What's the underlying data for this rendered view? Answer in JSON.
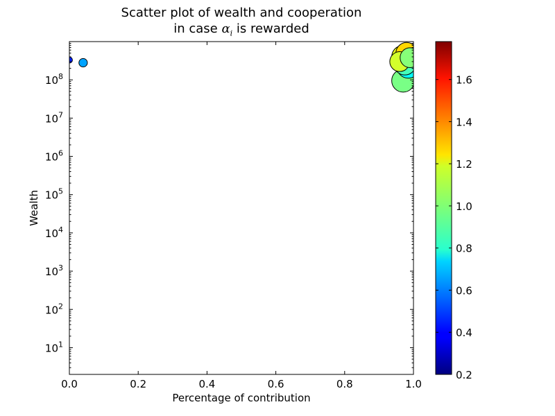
{
  "chart_data": {
    "type": "scatter",
    "title_line1": "Scatter plot of wealth and cooperation",
    "title_line2_prefix": "in case ",
    "title_line2_math": "α",
    "title_line2_math_sub": "i",
    "title_line2_suffix": " is rewarded",
    "xlabel": "Percentage of contribution",
    "ylabel": "Wealth",
    "xlim": [
      0.0,
      1.0
    ],
    "ylim": [
      2,
      1000000000
    ],
    "yscale": "log",
    "xticks": [
      "0.0",
      "0.2",
      "0.4",
      "0.6",
      "0.8",
      "1.0"
    ],
    "yticks": [
      {
        "base": "10",
        "exp": "1"
      },
      {
        "base": "10",
        "exp": "2"
      },
      {
        "base": "10",
        "exp": "3"
      },
      {
        "base": "10",
        "exp": "4"
      },
      {
        "base": "10",
        "exp": "5"
      },
      {
        "base": "10",
        "exp": "6"
      },
      {
        "base": "10",
        "exp": "7"
      },
      {
        "base": "10",
        "exp": "8"
      }
    ],
    "colorbar": {
      "range": [
        0.2,
        1.78
      ],
      "ticks": [
        "0.2",
        "0.4",
        "0.6",
        "0.8",
        "1.0",
        "1.2",
        "1.4",
        "1.6"
      ],
      "colormap": "jet"
    },
    "points": [
      {
        "x": 0.0,
        "y": 330000000,
        "c": 0.45,
        "size": 0.4
      },
      {
        "x": 0.04,
        "y": 280000000,
        "c": 0.65,
        "size": 0.55
      },
      {
        "x": 0.97,
        "y": 95000000,
        "c": 0.98,
        "size": 1.5
      },
      {
        "x": 0.98,
        "y": 500000000,
        "c": 1.25,
        "size": 1.4
      },
      {
        "x": 0.97,
        "y": 400000000,
        "c": 1.15,
        "size": 1.5
      },
      {
        "x": 0.98,
        "y": 330000000,
        "c": 1.08,
        "size": 1.5
      },
      {
        "x": 0.96,
        "y": 300000000,
        "c": 1.12,
        "size": 1.3
      },
      {
        "x": 0.975,
        "y": 260000000,
        "c": 0.9,
        "size": 1.45
      },
      {
        "x": 0.99,
        "y": 380000000,
        "c": 1.0,
        "size": 1.3
      },
      {
        "x": 0.985,
        "y": 220000000,
        "c": 0.8,
        "size": 1.5
      }
    ]
  }
}
